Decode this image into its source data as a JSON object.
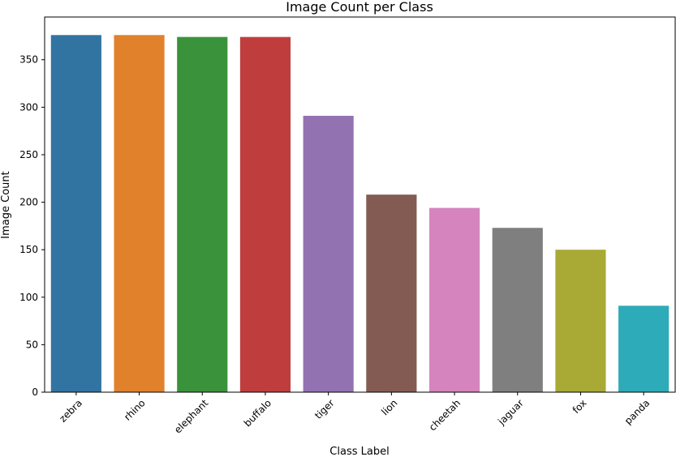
{
  "chart_data": {
    "type": "bar",
    "title": "Image Count per Class",
    "xlabel": "Class Label",
    "ylabel": "Image Count",
    "categories": [
      "zebra",
      "rhino",
      "elephant",
      "buffalo",
      "tiger",
      "lion",
      "cheetah",
      "jaguar",
      "fox",
      "panda"
    ],
    "values": [
      376,
      376,
      374,
      374,
      291,
      208,
      194,
      173,
      150,
      91
    ],
    "colors": [
      "#3274a1",
      "#e1812c",
      "#3a923a",
      "#c03d3e",
      "#9372b2",
      "#845b53",
      "#d684bd",
      "#7f7f7f",
      "#a9aa35",
      "#2eabb8"
    ],
    "ylim": [
      0,
      395
    ],
    "yticks": [
      0,
      50,
      100,
      150,
      200,
      250,
      300,
      350
    ],
    "grid": false,
    "legend": false
  }
}
